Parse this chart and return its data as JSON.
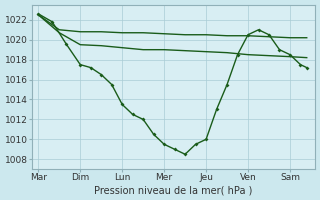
{
  "background_color": "#cce8ee",
  "plot_bg": "#d8eef3",
  "grid_color": "#aaccd5",
  "line_color": "#1a5c1a",
  "marker_color": "#1a5c1a",
  "x_labels": [
    "Mar",
    "Dim",
    "Lun",
    "Mer",
    "Jeu",
    "Ven",
    "Sam"
  ],
  "x_ticks": [
    0,
    1,
    2,
    3,
    4,
    5,
    6
  ],
  "xlabel": "Pression niveau de la mer( hPa )",
  "ylim": [
    1007,
    1023.5
  ],
  "yticks": [
    1008,
    1010,
    1012,
    1014,
    1016,
    1018,
    1020,
    1022
  ],
  "series": [
    {
      "x": [
        0.0,
        0.5,
        1.0,
        1.5,
        2.0,
        2.5,
        3.0,
        3.5,
        4.0,
        4.5,
        5.0,
        5.5,
        6.0,
        6.4
      ],
      "y": [
        1022.5,
        1021.0,
        1020.8,
        1020.8,
        1020.7,
        1020.7,
        1020.6,
        1020.5,
        1020.5,
        1020.4,
        1020.4,
        1020.3,
        1020.2,
        1020.2
      ]
    },
    {
      "x": [
        0.0,
        0.5,
        1.0,
        1.5,
        2.0,
        2.5,
        3.0,
        3.5,
        4.0,
        4.5,
        5.0,
        5.5,
        6.0,
        6.4
      ],
      "y": [
        1022.5,
        1020.7,
        1019.5,
        1019.4,
        1019.2,
        1019.0,
        1019.0,
        1018.9,
        1018.8,
        1018.7,
        1018.5,
        1018.4,
        1018.3,
        1018.2
      ]
    },
    {
      "x": [
        0.0,
        0.33,
        0.66,
        1.0,
        1.25,
        1.5,
        1.75,
        2.0,
        2.25,
        2.5,
        2.75,
        3.0,
        3.25,
        3.5,
        3.75,
        4.0,
        4.25,
        4.5,
        4.75,
        5.0,
        5.25,
        5.5,
        5.75,
        6.0,
        6.25,
        6.4
      ],
      "y": [
        1022.6,
        1021.8,
        1019.6,
        1017.5,
        1017.2,
        1016.5,
        1015.5,
        1013.5,
        1012.5,
        1012.0,
        1010.5,
        1009.5,
        1009.0,
        1008.5,
        1009.5,
        1010.0,
        1013.0,
        1015.5,
        1018.5,
        1020.5,
        1021.0,
        1020.5,
        1019.0,
        1018.5,
        1017.5,
        1017.2
      ]
    }
  ]
}
